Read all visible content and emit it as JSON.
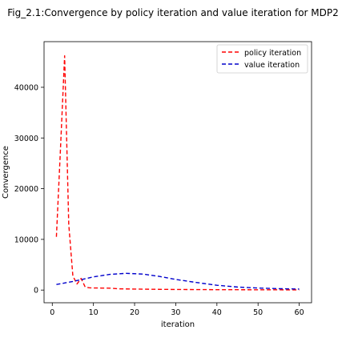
{
  "chart_data": {
    "type": "line",
    "title": "Fig_2.1:Convergence  by policy iteration and value iteration for MDP2",
    "xlabel": "iteration",
    "ylabel": "Convergence",
    "xlim": [
      -2,
      63
    ],
    "ylim": [
      -2500,
      49000
    ],
    "x_ticks": [
      0,
      10,
      20,
      30,
      40,
      50,
      60
    ],
    "y_ticks": [
      0,
      10000,
      20000,
      30000,
      40000
    ],
    "grid": false,
    "legend_position": "top-right",
    "series": [
      {
        "name": "policy iteration",
        "color": "#ff0000",
        "line_style": "dashed",
        "x": [
          1,
          2,
          3,
          4,
          5,
          6,
          7,
          8,
          9,
          10,
          12,
          14,
          16,
          20,
          25,
          30,
          40,
          50,
          60
        ],
        "y": [
          10500,
          28000,
          46200,
          13000,
          2800,
          1200,
          2300,
          600,
          450,
          420,
          400,
          380,
          250,
          200,
          150,
          120,
          80,
          60,
          40
        ]
      },
      {
        "name": "value iteration",
        "color": "#0000cc",
        "line_style": "dashed",
        "x": [
          1,
          5,
          10,
          14,
          18,
          22,
          26,
          30,
          35,
          40,
          45,
          50,
          55,
          60
        ],
        "y": [
          1100,
          1700,
          2600,
          3100,
          3300,
          3150,
          2700,
          2100,
          1500,
          950,
          600,
          400,
          280,
          200
        ]
      }
    ]
  }
}
